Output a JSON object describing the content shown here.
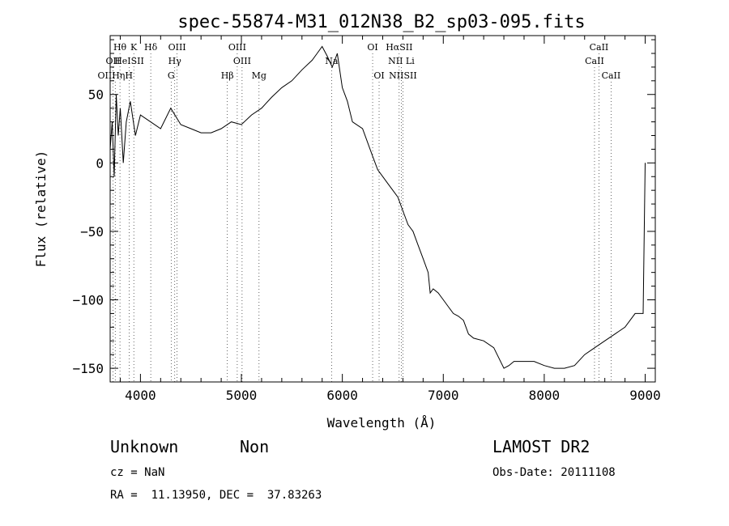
{
  "chart_data": {
    "type": "line",
    "title": "spec-55874-M31_012N38_B2_sp03-095.fits",
    "xlabel": "Wavelength (Å)",
    "ylabel": "Flux (relative)",
    "xlim": [
      3700,
      9100
    ],
    "ylim": [
      -160,
      93
    ],
    "x_ticks": [
      4000,
      5000,
      6000,
      7000,
      8000,
      9000
    ],
    "y_ticks": [
      -150,
      -100,
      -50,
      0,
      50
    ],
    "grid": false,
    "series": [
      {
        "x": [
          3700,
          3720,
          3740,
          3760,
          3780,
          3800,
          3830,
          3860,
          3900,
          3950,
          4000,
          4100,
          4200,
          4300,
          4400,
          4500,
          4600,
          4700,
          4800,
          4900,
          5000,
          5100,
          5200,
          5300,
          5400,
          5500,
          5600,
          5700,
          5750,
          5800,
          5850,
          5900,
          5950,
          6000,
          6050,
          6100,
          6200,
          6300,
          6350,
          6400,
          6450,
          6500,
          6550,
          6600,
          6650,
          6700,
          6750,
          6800,
          6850,
          6870,
          6900,
          6950,
          7000,
          7050,
          7100,
          7150,
          7200,
          7250,
          7300,
          7400,
          7500,
          7600,
          7650,
          7700,
          7800,
          7900,
          8000,
          8100,
          8200,
          8300,
          8400,
          8500,
          8600,
          8700,
          8800,
          8900,
          8960,
          8980,
          9000
        ],
        "y": [
          10,
          30,
          -10,
          50,
          20,
          40,
          0,
          30,
          45,
          20,
          35,
          30,
          25,
          40,
          28,
          25,
          22,
          22,
          25,
          30,
          28,
          35,
          40,
          48,
          55,
          60,
          68,
          75,
          80,
          85,
          78,
          70,
          80,
          55,
          45,
          30,
          25,
          5,
          -5,
          -10,
          -15,
          -20,
          -25,
          -35,
          -45,
          -50,
          -60,
          -70,
          -80,
          -95,
          -92,
          -95,
          -100,
          -105,
          -110,
          -112,
          -115,
          -125,
          -128,
          -130,
          -135,
          -150,
          -148,
          -145,
          -145,
          -145,
          -148,
          -150,
          -150,
          -148,
          -140,
          -135,
          -130,
          -125,
          -120,
          -110,
          -110,
          -110,
          0
        ]
      }
    ],
    "line_markers": [
      {
        "label": "Hθ",
        "x": 3797,
        "row": 1
      },
      {
        "label": "K",
        "x": 3934,
        "row": 1
      },
      {
        "label": "Hδ",
        "x": 4102,
        "row": 1
      },
      {
        "label": "OIII",
        "x": 4363,
        "row": 1
      },
      {
        "label": "OIII",
        "x": 4959,
        "row": 1
      },
      {
        "label": "OI",
        "x": 6300,
        "row": 1
      },
      {
        "label": "HαSII",
        "x": 6563,
        "row": 1
      },
      {
        "label": "CaII",
        "x": 8542,
        "row": 1
      },
      {
        "label": "OII",
        "x": 3727,
        "row": 2
      },
      {
        "label": "HeISII",
        "x": 3889,
        "row": 2
      },
      {
        "label": "Hγ",
        "x": 4340,
        "row": 2
      },
      {
        "label": "OIII",
        "x": 5007,
        "row": 2
      },
      {
        "label": "Na",
        "x": 5893,
        "row": 2
      },
      {
        "label": "NII Li",
        "x": 6584,
        "row": 2
      },
      {
        "label": "CaII",
        "x": 8498,
        "row": 2
      },
      {
        "label": "OIIHηH",
        "x": 3750,
        "row": 3
      },
      {
        "label": "G",
        "x": 4304,
        "row": 3
      },
      {
        "label": "Hβ",
        "x": 4861,
        "row": 3
      },
      {
        "label": "Mg",
        "x": 5175,
        "row": 3
      },
      {
        "label": "OI",
        "x": 6364,
        "row": 3
      },
      {
        "label": "NIISII",
        "x": 6600,
        "row": 3
      },
      {
        "label": "CaII",
        "x": 8662,
        "row": 3
      }
    ]
  },
  "info": {
    "class": "Unknown",
    "subclass": "Non",
    "survey": "LAMOST DR2",
    "cz": "cz = NaN",
    "obs_date": "Obs-Date: 20111108",
    "coords": "RA =  11.13950, DEC =  37.83263"
  }
}
